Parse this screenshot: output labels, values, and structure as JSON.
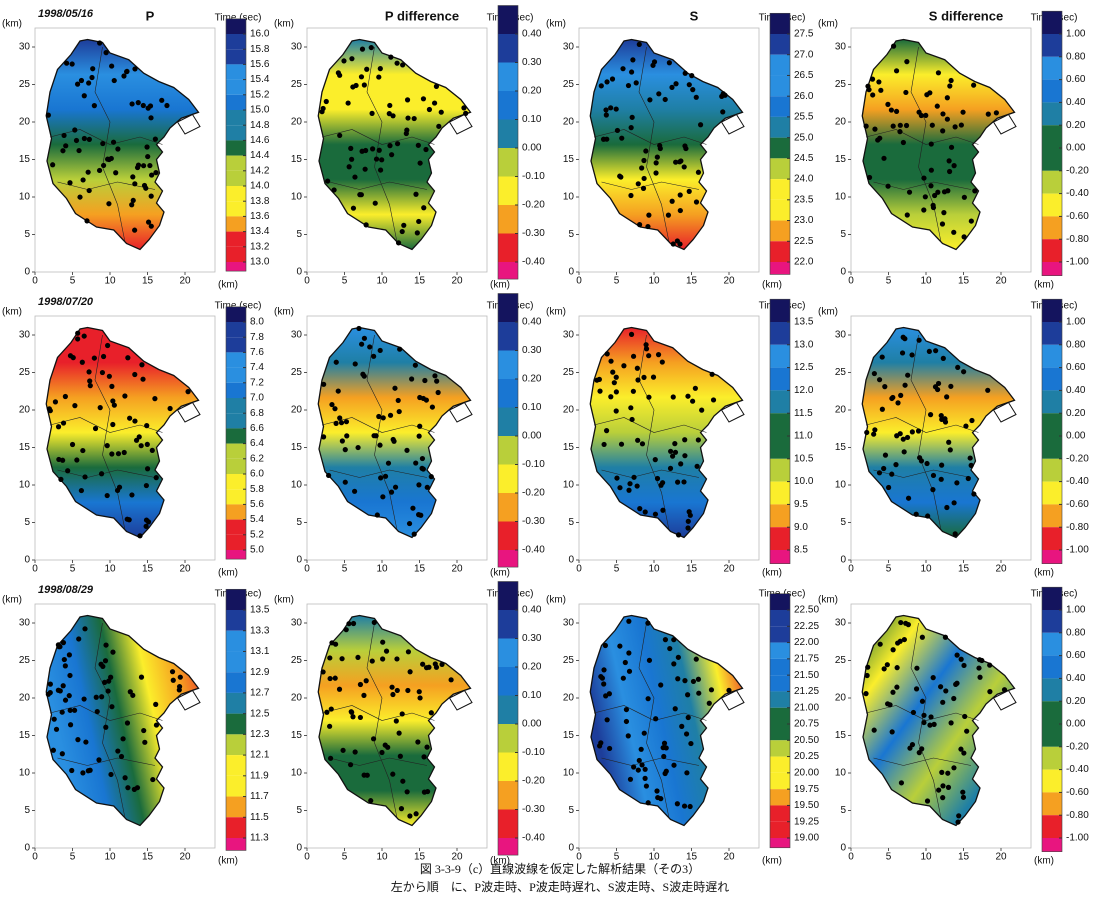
{
  "figure": {
    "palette": [
      "#e8157f",
      "#e8202a",
      "#f5a021",
      "#fbee2b",
      "#b9cf3a",
      "#1a6b3c",
      "#1f7fa5",
      "#1976d2",
      "#2a8fe0",
      "#1d3d9a",
      "#14145e"
    ],
    "axes": {
      "xticks": [
        0,
        5,
        10,
        15,
        20
      ],
      "yticks": [
        0,
        5,
        10,
        15,
        20,
        25,
        30
      ],
      "unit": "(km)"
    },
    "colorbar_title": "Time (sec)",
    "titles": [
      "P",
      "P difference",
      "S",
      "S difference"
    ],
    "rows": [
      {
        "date": "1998/05/16",
        "colorbars": [
          [
            {
              "value": 16,
              "label": "16.0"
            },
            15.8,
            15.6,
            15.4,
            15.2,
            {
              "value": 15,
              "label": "15.0"
            },
            14.8,
            14.6,
            14.4,
            14.2,
            {
              "value": 14,
              "label": "14.0"
            },
            13.8,
            13.6,
            13.4,
            13.2,
            {
              "value": 13,
              "label": "13.0"
            }
          ],
          [
            {
              "value": 0.4,
              "label": "0.40"
            },
            {
              "value": 0.3,
              "label": "0.30"
            },
            {
              "value": 0.2,
              "label": "0.20"
            },
            {
              "value": 0.1,
              "label": "0.10"
            },
            {
              "value": 0,
              "label": "0.00"
            },
            {
              "value": -0.1,
              "label": "-0.10"
            },
            {
              "value": -0.2,
              "label": "-0.20"
            },
            {
              "value": -0.3,
              "label": "-0.30"
            },
            {
              "value": -0.4,
              "label": "-0.40"
            }
          ],
          [
            27.5,
            {
              "value": 27,
              "label": "27.0"
            },
            26.5,
            {
              "value": 26,
              "label": "26.0"
            },
            25.5,
            {
              "value": 25,
              "label": "25.0"
            },
            24.5,
            {
              "value": 24,
              "label": "24.0"
            },
            23.5,
            {
              "value": 23,
              "label": "23.0"
            },
            22.5,
            {
              "value": 22,
              "label": "22.0"
            }
          ],
          [
            {
              "value": 1,
              "label": "1.00"
            },
            {
              "value": 0.8,
              "label": "0.80"
            },
            {
              "value": 0.6,
              "label": "0.60"
            },
            {
              "value": 0.4,
              "label": "0.40"
            },
            {
              "value": 0.2,
              "label": "0.20"
            },
            {
              "value": 0,
              "label": "0.00"
            },
            {
              "value": -0.2,
              "label": "-0.20"
            },
            {
              "value": -0.4,
              "label": "-0.40"
            },
            {
              "value": -0.6,
              "label": "-0.60"
            },
            {
              "value": -0.8,
              "label": "-0.80"
            },
            {
              "value": -1,
              "label": "-1.00"
            }
          ]
        ]
      },
      {
        "date": "1998/07/20",
        "colorbars": [
          [
            {
              "value": 8,
              "label": "8.0"
            },
            7.8,
            7.6,
            7.4,
            7.2,
            {
              "value": 7,
              "label": "7.0"
            },
            6.8,
            6.6,
            6.4,
            6.2,
            {
              "value": 6,
              "label": "6.0"
            },
            5.8,
            5.6,
            5.4,
            5.2,
            {
              "value": 5,
              "label": "5.0"
            }
          ],
          [
            {
              "value": 0.4,
              "label": "0.40"
            },
            {
              "value": 0.3,
              "label": "0.30"
            },
            {
              "value": 0.2,
              "label": "0.20"
            },
            {
              "value": 0.1,
              "label": "0.10"
            },
            {
              "value": 0,
              "label": "0.00"
            },
            {
              "value": -0.1,
              "label": "-0.10"
            },
            {
              "value": -0.2,
              "label": "-0.20"
            },
            {
              "value": -0.3,
              "label": "-0.30"
            },
            {
              "value": -0.4,
              "label": "-0.40"
            }
          ],
          [
            13.5,
            {
              "value": 13,
              "label": "13.0"
            },
            12.5,
            {
              "value": 12,
              "label": "12.0"
            },
            11.5,
            {
              "value": 11,
              "label": "11.0"
            },
            10.5,
            {
              "value": 10,
              "label": "10.0"
            },
            9.5,
            {
              "value": 9,
              "label": "9.0"
            },
            8.5
          ],
          [
            {
              "value": 1,
              "label": "1.00"
            },
            {
              "value": 0.8,
              "label": "0.80"
            },
            {
              "value": 0.6,
              "label": "0.60"
            },
            {
              "value": 0.4,
              "label": "0.40"
            },
            {
              "value": 0.2,
              "label": "0.20"
            },
            {
              "value": 0,
              "label": "0.00"
            },
            {
              "value": -0.2,
              "label": "-0.20"
            },
            {
              "value": -0.4,
              "label": "-0.40"
            },
            {
              "value": -0.6,
              "label": "-0.60"
            },
            {
              "value": -0.8,
              "label": "-0.80"
            },
            {
              "value": -1,
              "label": "-1.00"
            }
          ]
        ]
      },
      {
        "date": "1998/08/29",
        "colorbars": [
          [
            13.5,
            13.3,
            13.1,
            12.9,
            12.7,
            12.5,
            12.3,
            12.1,
            11.9,
            11.7,
            11.5,
            11.3
          ],
          [
            {
              "value": 0.4,
              "label": "0.40"
            },
            {
              "value": 0.3,
              "label": "0.30"
            },
            {
              "value": 0.2,
              "label": "0.20"
            },
            {
              "value": 0.1,
              "label": "0.10"
            },
            {
              "value": 0,
              "label": "0.00"
            },
            {
              "value": -0.1,
              "label": "-0.10"
            },
            {
              "value": -0.2,
              "label": "-0.20"
            },
            {
              "value": -0.3,
              "label": "-0.30"
            },
            {
              "value": -0.4,
              "label": "-0.40"
            }
          ],
          [
            {
              "value": 22.5,
              "label": "22.50"
            },
            22.25,
            {
              "value": 22,
              "label": "22.00"
            },
            21.75,
            {
              "value": 21.5,
              "label": "21.50"
            },
            21.25,
            {
              "value": 21,
              "label": "21.00"
            },
            20.75,
            {
              "value": 20.5,
              "label": "20.50"
            },
            20.25,
            {
              "value": 20,
              "label": "20.00"
            },
            19.75,
            {
              "value": 19.5,
              "label": "19.50"
            },
            19.25,
            {
              "value": 19,
              "label": "19.00"
            }
          ],
          [
            {
              "value": 1,
              "label": "1.00"
            },
            {
              "value": 0.8,
              "label": "0.80"
            },
            {
              "value": 0.6,
              "label": "0.60"
            },
            {
              "value": 0.4,
              "label": "0.40"
            },
            {
              "value": 0.2,
              "label": "0.20"
            },
            {
              "value": 0,
              "label": "0.00"
            },
            {
              "value": -0.2,
              "label": "-0.20"
            },
            {
              "value": -0.4,
              "label": "-0.40"
            },
            {
              "value": -0.6,
              "label": "-0.60"
            },
            {
              "value": -0.8,
              "label": "-0.80"
            },
            {
              "value": -1,
              "label": "-1.00"
            }
          ]
        ]
      }
    ]
  },
  "caption": {
    "line1": "図 3-3-9（c）直線波線を仮定した解析結果（その3）",
    "line2": "左から順　に、P波走時、P波走時遅れ、S波走時、S波走時遅れ"
  }
}
